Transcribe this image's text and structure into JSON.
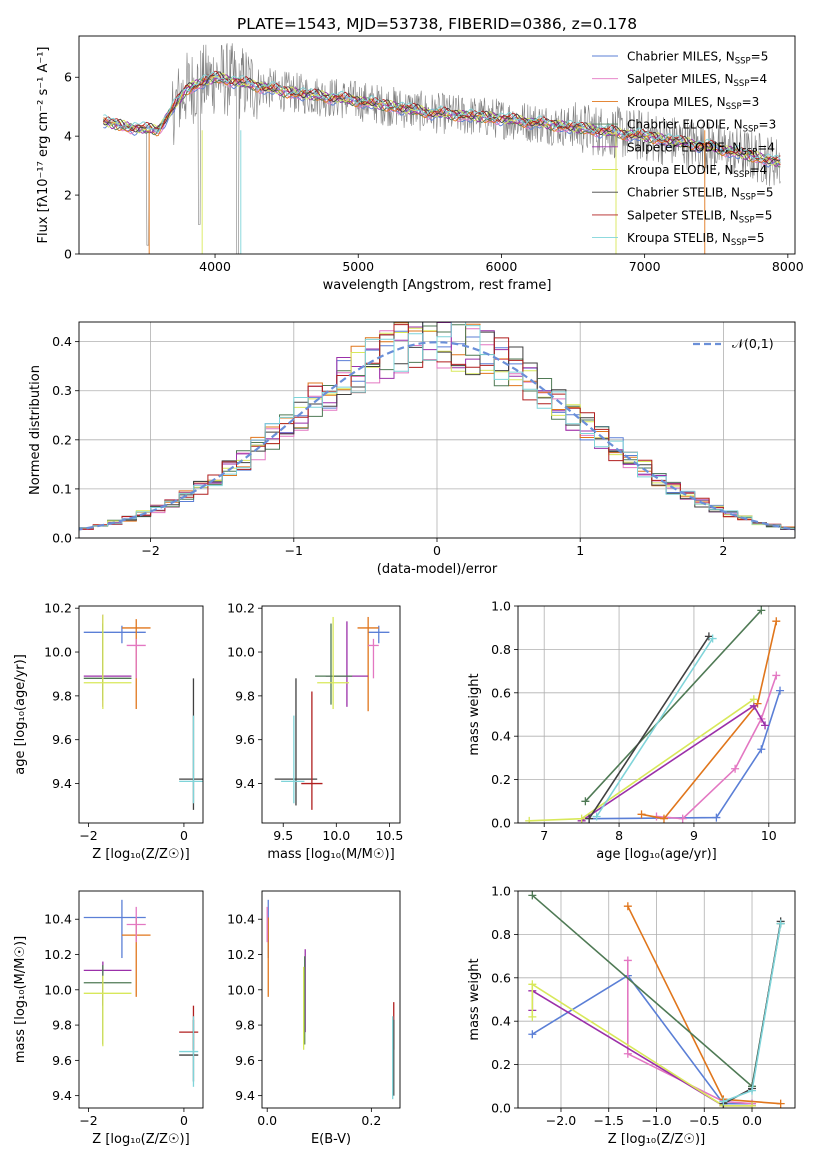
{
  "figure": {
    "title": "PLATE=1543, MJD=53738, FIBERID=0386, z=0.178"
  },
  "chart_data": [
    {
      "id": "spectrum",
      "type": "line",
      "xlabel": "wavelength [Angstrom, rest frame]",
      "ylabel": "Flux [fλ10⁻¹⁷ erg cm⁻² s⁻¹ A⁻¹]",
      "xlim": [
        3050,
        8050
      ],
      "ylim": [
        0,
        7.4
      ],
      "xticks": [
        4000,
        5000,
        6000,
        7000,
        8000
      ],
      "yticks": [
        0,
        2,
        4,
        6
      ],
      "grid": false,
      "legend_position": "right",
      "observed_color": "#808080",
      "series": [
        {
          "name": "Chabrier MILES",
          "nssp": "5",
          "color": "#5b7fd6"
        },
        {
          "name": "Salpeter MILES",
          "nssp": "4",
          "color": "#e377c2"
        },
        {
          "name": "Kroupa MILES",
          "nssp": "3",
          "color": "#e0761c"
        },
        {
          "name": "Chabrier ELODIE",
          "nssp": "3",
          "color": "#4f7a55"
        },
        {
          "name": "Salpeter ELODIE",
          "nssp": "4",
          "color": "#9b30a9"
        },
        {
          "name": "Kroupa ELODIE",
          "nssp": "4",
          "color": "#d8e85a"
        },
        {
          "name": "Chabrier STELIB",
          "nssp": "5",
          "color": "#404040"
        },
        {
          "name": "Salpeter STELIB",
          "nssp": "5",
          "color": "#b01f1f"
        },
        {
          "name": "Kroupa STELIB",
          "nssp": "5",
          "color": "#7fd4d9"
        }
      ],
      "continuum": {
        "x": [
          3220,
          3400,
          3600,
          3800,
          4000,
          4200,
          4500,
          5000,
          5500,
          6000,
          6500,
          7000,
          7500,
          7950
        ],
        "y": [
          4.5,
          4.3,
          4.2,
          5.6,
          6.0,
          5.8,
          5.5,
          5.2,
          4.8,
          4.6,
          4.3,
          4.0,
          3.6,
          3.1
        ]
      }
    },
    {
      "id": "residuals",
      "type": "line",
      "xlabel": "(data-model)/error",
      "ylabel": "Normed distribution",
      "xlim": [
        -2.5,
        2.5
      ],
      "ylim": [
        0,
        0.44
      ],
      "xticks": [
        -2,
        -1,
        0,
        1,
        2
      ],
      "yticks": [
        0.0,
        0.1,
        0.2,
        0.3,
        0.4
      ],
      "grid": true,
      "legend_position": "top-right",
      "reference": {
        "name": "𝒩(0,1)",
        "color": "#6a8fd8"
      }
    },
    {
      "id": "age-vs-z",
      "type": "scatter",
      "xlabel": "Z [log₁₀(Z/Z☉)]",
      "ylabel": "age  [log₁₀(age/yr)]",
      "xlim": [
        -2.2,
        0.4
      ],
      "ylim": [
        9.22,
        10.21
      ],
      "xticks": [
        -2,
        0
      ],
      "yticks": [
        9.4,
        9.6,
        9.8,
        10.0,
        10.2
      ],
      "grid": false,
      "errorbars": [
        {
          "x": -1.3,
          "y": 10.09,
          "xerr": [
            0.8,
            0.5
          ],
          "yerr": [
            0.05,
            0.03
          ],
          "color": "#5b7fd6"
        },
        {
          "x": -1.0,
          "y": 10.11,
          "xerr": [
            0.3,
            0.3
          ],
          "yerr": [
            0.37,
            0.04
          ],
          "color": "#e0761c"
        },
        {
          "x": -1.0,
          "y": 10.03,
          "xerr": [
            0.2,
            0.2
          ],
          "yerr": [
            0.15,
            0.03
          ],
          "color": "#e377c2"
        },
        {
          "x": -1.7,
          "y": 9.89,
          "xerr": [
            0.4,
            0.6
          ],
          "yerr": [
            0.14,
            0.28
          ],
          "color": "#9b30a9"
        },
        {
          "x": -1.7,
          "y": 9.88,
          "xerr": [
            0.4,
            0.6
          ],
          "yerr": [
            0.1,
            0.25
          ],
          "color": "#4f7a55"
        },
        {
          "x": -1.7,
          "y": 9.86,
          "xerr": [
            0.4,
            0.6
          ],
          "yerr": [
            0.12,
            0.31
          ],
          "color": "#d8e85a"
        },
        {
          "x": 0.2,
          "y": 9.42,
          "xerr": [
            0.3,
            0.2
          ],
          "yerr": [
            0.14,
            0.46
          ],
          "color": "#404040"
        },
        {
          "x": 0.2,
          "y": 9.41,
          "xerr": [
            0.3,
            0.2
          ],
          "yerr": [
            0.1,
            0.3
          ],
          "color": "#7fd4d9"
        }
      ]
    },
    {
      "id": "age-vs-mass",
      "type": "scatter",
      "xlabel": "mass [log₁₀(M/M☉)]",
      "ylabel": "",
      "xlim": [
        9.3,
        10.6
      ],
      "ylim": [
        9.22,
        10.21
      ],
      "xticks": [
        9.5,
        10.0,
        10.5
      ],
      "yticks": [
        9.4,
        9.6,
        9.8,
        10.0,
        10.2
      ],
      "grid": false,
      "errorbars": [
        {
          "x": 10.4,
          "y": 10.09,
          "xerr": [
            0.1,
            0.1
          ],
          "yerr": [
            0.05,
            0.03
          ],
          "color": "#5b7fd6"
        },
        {
          "x": 10.3,
          "y": 10.11,
          "xerr": [
            0.1,
            0.1
          ],
          "yerr": [
            0.38,
            0.05
          ],
          "color": "#e0761c"
        },
        {
          "x": 10.35,
          "y": 10.03,
          "xerr": [
            0.05,
            0.05
          ],
          "yerr": [
            0.15,
            0.03
          ],
          "color": "#e377c2"
        },
        {
          "x": 10.1,
          "y": 9.89,
          "xerr": [
            0.2,
            0.2
          ],
          "yerr": [
            0.14,
            0.25
          ],
          "color": "#9b30a9"
        },
        {
          "x": 9.95,
          "y": 9.89,
          "xerr": [
            0.15,
            0.2
          ],
          "yerr": [
            0.13,
            0.24
          ],
          "color": "#4f7a55"
        },
        {
          "x": 9.97,
          "y": 9.86,
          "xerr": [
            0.15,
            0.15
          ],
          "yerr": [
            0.12,
            0.3
          ],
          "color": "#d8e85a"
        },
        {
          "x": 9.62,
          "y": 9.42,
          "xerr": [
            0.2,
            0.2
          ],
          "yerr": [
            0.12,
            0.46
          ],
          "color": "#404040"
        },
        {
          "x": 9.77,
          "y": 9.4,
          "xerr": [
            0.1,
            0.1
          ],
          "yerr": [
            0.12,
            0.42
          ],
          "color": "#b01f1f"
        },
        {
          "x": 9.6,
          "y": 9.41,
          "xerr": [
            0.12,
            0.1
          ],
          "yerr": [
            0.1,
            0.3
          ],
          "color": "#7fd4d9"
        }
      ]
    },
    {
      "id": "weight-vs-age",
      "type": "line",
      "xlabel": "age  [log₁₀(age/yr)]",
      "ylabel": "mass weight",
      "xlim": [
        6.65,
        10.35
      ],
      "ylim": [
        0,
        1.0
      ],
      "xticks": [
        7,
        8,
        9,
        10
      ],
      "yticks": [
        0.0,
        0.2,
        0.4,
        0.6,
        0.8,
        1.0
      ],
      "grid": true,
      "series": [
        {
          "color": "#5b7fd6",
          "x": [
            7.6,
            9.3,
            9.9,
            10.15
          ],
          "y": [
            0.02,
            0.025,
            0.34,
            0.61
          ]
        },
        {
          "color": "#e377c2",
          "x": [
            8.5,
            8.85,
            9.55,
            9.9,
            10.1
          ],
          "y": [
            0.03,
            0.02,
            0.25,
            0.48,
            0.68
          ]
        },
        {
          "color": "#e0761c",
          "x": [
            8.3,
            8.6,
            9.85,
            10.1
          ],
          "y": [
            0.04,
            0.02,
            0.55,
            0.93
          ]
        },
        {
          "color": "#4f7a55",
          "x": [
            7.55,
            9.9
          ],
          "y": [
            0.1,
            0.98
          ]
        },
        {
          "color": "#9b30a9",
          "x": [
            7.5,
            9.8,
            9.95
          ],
          "y": [
            0.01,
            0.54,
            0.45
          ]
        },
        {
          "color": "#d8e85a",
          "x": [
            6.8,
            7.5,
            9.8
          ],
          "y": [
            0.01,
            0.02,
            0.57
          ]
        },
        {
          "color": "#404040",
          "x": [
            7.6,
            9.2
          ],
          "y": [
            0.02,
            0.86
          ]
        },
        {
          "color": "#7fd4d9",
          "x": [
            7.7,
            9.25
          ],
          "y": [
            0.03,
            0.85
          ]
        }
      ]
    },
    {
      "id": "mass-vs-z",
      "type": "scatter",
      "xlabel": "Z [log₁₀(Z/Z☉)]",
      "ylabel": "mass [log₁₀(M/M☉)]",
      "xlim": [
        -2.2,
        0.4
      ],
      "ylim": [
        9.33,
        10.56
      ],
      "xticks": [
        -2,
        0
      ],
      "yticks": [
        9.4,
        9.6,
        9.8,
        10.0,
        10.2,
        10.4
      ],
      "grid": false,
      "errorbars": [
        {
          "x": -1.3,
          "y": 10.41,
          "xerr": [
            0.8,
            0.5
          ],
          "yerr": [
            0.23,
            0.1
          ],
          "color": "#5b7fd6"
        },
        {
          "x": -1.0,
          "y": 10.31,
          "xerr": [
            0.3,
            0.3
          ],
          "yerr": [
            0.35,
            0.1
          ],
          "color": "#e0761c"
        },
        {
          "x": -1.0,
          "y": 10.37,
          "xerr": [
            0.2,
            0.2
          ],
          "yerr": [
            0.1,
            0.1
          ],
          "color": "#e377c2"
        },
        {
          "x": -1.7,
          "y": 10.11,
          "xerr": [
            0.4,
            0.6
          ],
          "yerr": [
            0.2,
            0.05
          ],
          "color": "#9b30a9"
        },
        {
          "x": -1.7,
          "y": 10.04,
          "xerr": [
            0.4,
            0.6
          ],
          "yerr": [
            0.35,
            0.1
          ],
          "color": "#4f7a55"
        },
        {
          "x": -1.7,
          "y": 9.98,
          "xerr": [
            0.4,
            0.6
          ],
          "yerr": [
            0.3,
            0.1
          ],
          "color": "#d8e85a"
        },
        {
          "x": 0.2,
          "y": 9.76,
          "xerr": [
            0.3,
            0.1
          ],
          "yerr": [
            0.1,
            0.15
          ],
          "color": "#b01f1f"
        },
        {
          "x": 0.2,
          "y": 9.63,
          "xerr": [
            0.3,
            0.1
          ],
          "yerr": [
            0.15,
            0.2
          ],
          "color": "#404040"
        },
        {
          "x": 0.2,
          "y": 9.65,
          "xerr": [
            0.3,
            0.1
          ],
          "yerr": [
            0.2,
            0.2
          ],
          "color": "#7fd4d9"
        }
      ]
    },
    {
      "id": "mass-vs-ebv",
      "type": "scatter",
      "xlabel": "E(B-V)",
      "ylabel": "",
      "xlim": [
        -0.01,
        0.255
      ],
      "ylim": [
        9.33,
        10.56
      ],
      "xticks": [
        0.0,
        0.2
      ],
      "yticks": [
        9.4,
        9.6,
        9.8,
        10.0,
        10.2,
        10.4
      ],
      "grid": false,
      "errorbars": [
        {
          "x": 0.002,
          "y": 10.41,
          "xerr": [
            0,
            0
          ],
          "yerr": [
            0.23,
            0.1
          ],
          "color": "#5b7fd6"
        },
        {
          "x": 0.002,
          "y": 10.31,
          "xerr": [
            0,
            0
          ],
          "yerr": [
            0.35,
            0.1
          ],
          "color": "#e0761c"
        },
        {
          "x": 0.0,
          "y": 10.37,
          "xerr": [
            0,
            0
          ],
          "yerr": [
            0.1,
            0.1
          ],
          "color": "#e377c2"
        },
        {
          "x": 0.073,
          "y": 10.11,
          "xerr": [
            0,
            0
          ],
          "yerr": [
            0.35,
            0.12
          ],
          "color": "#9b30a9"
        },
        {
          "x": 0.072,
          "y": 10.04,
          "xerr": [
            0,
            0
          ],
          "yerr": [
            0.35,
            0.15
          ],
          "color": "#4f7a55"
        },
        {
          "x": 0.07,
          "y": 9.98,
          "xerr": [
            0,
            0
          ],
          "yerr": [
            0.32,
            0.15
          ],
          "color": "#d8e85a"
        },
        {
          "x": 0.243,
          "y": 9.76,
          "xerr": [
            0,
            0
          ],
          "yerr": [
            0.1,
            0.17
          ],
          "color": "#b01f1f"
        },
        {
          "x": 0.243,
          "y": 9.63,
          "xerr": [
            0,
            0
          ],
          "yerr": [
            0.23,
            0.2
          ],
          "color": "#404040"
        },
        {
          "x": 0.241,
          "y": 9.65,
          "xerr": [
            0,
            0
          ],
          "yerr": [
            0.27,
            0.2
          ],
          "color": "#7fd4d9"
        }
      ]
    },
    {
      "id": "weight-vs-z",
      "type": "line",
      "xlabel": "Z [log₁₀(Z/Z☉)]",
      "ylabel": "mass weight",
      "xlim": [
        -2.45,
        0.45
      ],
      "ylim": [
        0,
        1.0
      ],
      "xticks": [
        -2.0,
        -1.5,
        -1.0,
        -0.5,
        0.0
      ],
      "yticks": [
        0.0,
        0.2,
        0.4,
        0.6,
        0.8,
        1.0
      ],
      "grid": true,
      "series": [
        {
          "color": "#5b7fd6",
          "x": [
            -2.3,
            -1.3,
            -0.3,
            0.0
          ],
          "y": [
            0.34,
            0.61,
            0.02,
            0.02
          ]
        },
        {
          "color": "#e377c2",
          "x": [
            -1.3,
            -1.3,
            -0.3,
            0.0
          ],
          "y": [
            0.68,
            0.25,
            0.03,
            0.02
          ]
        },
        {
          "color": "#e0761c",
          "x": [
            -1.3,
            -0.3,
            0.3
          ],
          "y": [
            0.93,
            0.04,
            0.02
          ]
        },
        {
          "color": "#4f7a55",
          "x": [
            -2.3,
            0.0,
            0.3
          ],
          "y": [
            0.98,
            0.1,
            0.85
          ]
        },
        {
          "color": "#9b30a9",
          "x": [
            -2.3,
            -2.3,
            -0.3,
            0.0
          ],
          "y": [
            0.45,
            0.54,
            0.01,
            0.01
          ]
        },
        {
          "color": "#d8e85a",
          "x": [
            -2.3,
            -2.3,
            -0.3,
            0.0
          ],
          "y": [
            0.42,
            0.57,
            0.01,
            0.01
          ]
        },
        {
          "color": "#404040",
          "x": [
            -0.3,
            0.0,
            0.3
          ],
          "y": [
            0.02,
            0.09,
            0.86
          ]
        },
        {
          "color": "#7fd4d9",
          "x": [
            -0.3,
            0.0,
            0.3
          ],
          "y": [
            0.03,
            0.08,
            0.85
          ]
        }
      ]
    }
  ]
}
